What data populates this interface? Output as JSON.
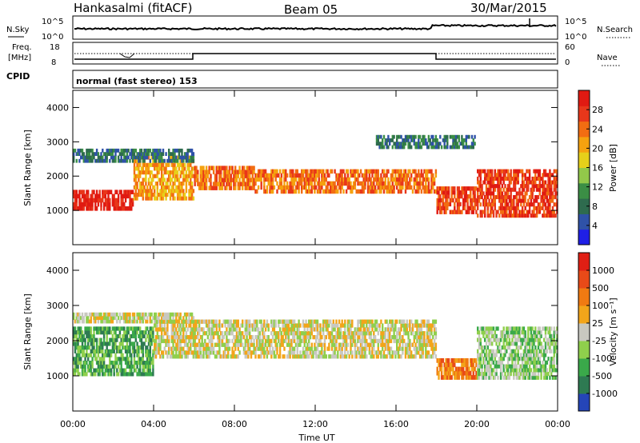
{
  "header": {
    "station": "Hankasalmi (fitACF)",
    "beam": "Beam 05",
    "date": "30/Mar/2015"
  },
  "summary": {
    "nsky_label": "N.Sky",
    "nsearch_label": "N.Search",
    "freq_label_1": "Freq.",
    "freq_label_2": "[MHz]",
    "nave_label": "Nave",
    "cpid_label": "CPID",
    "cpid_text": "normal (fast stereo) 153",
    "nsky_ticks": [
      "10^5",
      "10^0"
    ],
    "nsearch_ticks": [
      "10^5",
      "10^0"
    ],
    "freq_ticks": [
      "18",
      "8"
    ],
    "nave_ticks": [
      "60",
      "0"
    ]
  },
  "chart_data": [
    {
      "type": "heatmap",
      "name": "power",
      "ylabel": "Slant Range [km]",
      "yticks": [
        "4000",
        "3000",
        "2000",
        "1000"
      ],
      "ylim": [
        0,
        4500
      ],
      "xlim": [
        0,
        24
      ],
      "xticks": [
        "00:00",
        "04:00",
        "08:00",
        "12:00",
        "16:00",
        "20:00",
        "00:00"
      ],
      "colorbar": {
        "label": "Power [dB]",
        "ticks": [
          "28",
          "24",
          "20",
          "16",
          "12",
          "8",
          "4"
        ],
        "colors": [
          "#1f1fe6",
          "#2f52a8",
          "#2e6b4e",
          "#3b8e45",
          "#92c84a",
          "#e6d01a",
          "#f5a20f",
          "#f26d12",
          "#e8371b",
          "#e01a12"
        ]
      },
      "bands": [
        {
          "t0": 0.0,
          "t1": 3.0,
          "r0": 1000,
          "r1": 1600,
          "level": 9
        },
        {
          "t0": 3.0,
          "t1": 6.0,
          "r0": 1300,
          "r1": 2600,
          "level": 6
        },
        {
          "t0": 6.0,
          "t1": 9.0,
          "r0": 1600,
          "r1": 2300,
          "level": 7
        },
        {
          "t0": 9.0,
          "t1": 18.0,
          "r0": 1500,
          "r1": 2200,
          "level": 7
        },
        {
          "t0": 18.0,
          "t1": 20.0,
          "r0": 900,
          "r1": 1700,
          "level": 8
        },
        {
          "t0": 20.0,
          "t1": 24.0,
          "r0": 800,
          "r1": 2200,
          "level": 8
        },
        {
          "t0": 0.0,
          "t1": 6.0,
          "r0": 2400,
          "r1": 2800,
          "level": 2
        },
        {
          "t0": 15.0,
          "t1": 20.0,
          "r0": 2800,
          "r1": 3200,
          "level": 2
        }
      ]
    },
    {
      "type": "heatmap",
      "name": "velocity",
      "ylabel": "Slant Range [km]",
      "yticks": [
        "4000",
        "3000",
        "2000",
        "1000"
      ],
      "ylim": [
        0,
        4500
      ],
      "xlim": [
        0,
        24
      ],
      "xticks": [
        "00:00",
        "04:00",
        "08:00",
        "12:00",
        "16:00",
        "20:00",
        "00:00"
      ],
      "xlabel": "Time UT",
      "colorbar": {
        "label": "Velocity [m s⁻¹]",
        "ticks": [
          "1000",
          "500",
          "100",
          "25",
          "-25",
          "-100",
          "-500",
          "-1000"
        ],
        "colors": [
          "#2545b8",
          "#2e7a52",
          "#3aa94a",
          "#8fcf4c",
          "#c8c8c0",
          "#f2a51a",
          "#f07a12",
          "#e84a18",
          "#e01f14"
        ]
      },
      "bands": [
        {
          "t0": 0.0,
          "t1": 4.0,
          "r0": 1000,
          "r1": 2400,
          "level": 2
        },
        {
          "t0": 4.0,
          "t1": 18.0,
          "r0": 1500,
          "r1": 2600,
          "level": 4
        },
        {
          "t0": 18.0,
          "t1": 20.0,
          "r0": 900,
          "r1": 1500,
          "level": 6
        },
        {
          "t0": 20.0,
          "t1": 24.0,
          "r0": 900,
          "r1": 2400,
          "level": 3
        },
        {
          "t0": 0.0,
          "t1": 6.0,
          "r0": 2500,
          "r1": 2800,
          "level": 4
        }
      ]
    }
  ]
}
